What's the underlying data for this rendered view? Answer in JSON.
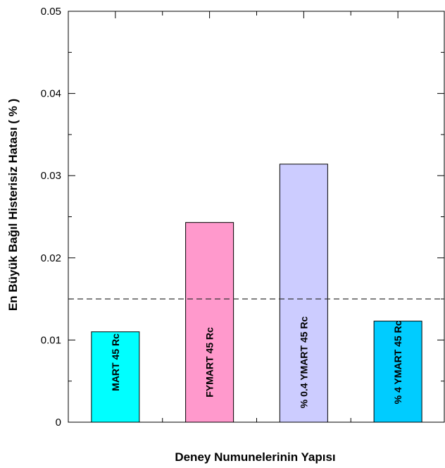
{
  "chart_data": {
    "type": "bar",
    "title": "",
    "xlabel": "Deney Numunelerinin Yapısı",
    "ylabel": "En Büyük Bağıl Histerisiz Hatası ( % )",
    "ylim": [
      0,
      0.05
    ],
    "yticks": [
      "0",
      "0.01",
      "0.02",
      "0.03",
      "0.04",
      "0.05"
    ],
    "grid": false,
    "categories": [
      "MART  45  Rc",
      "FYMART 45 Rc",
      "% 0.4  YMART 45 Rc",
      "% 4 YMART 45 Rc"
    ],
    "values": [
      0.011,
      0.0243,
      0.0314,
      0.0123
    ],
    "colors": [
      "#00FFFF",
      "#FF99CC",
      "#CCCCFF",
      "#00CCFF"
    ],
    "reference_line": {
      "value": 0.015,
      "style": "dashed"
    }
  }
}
